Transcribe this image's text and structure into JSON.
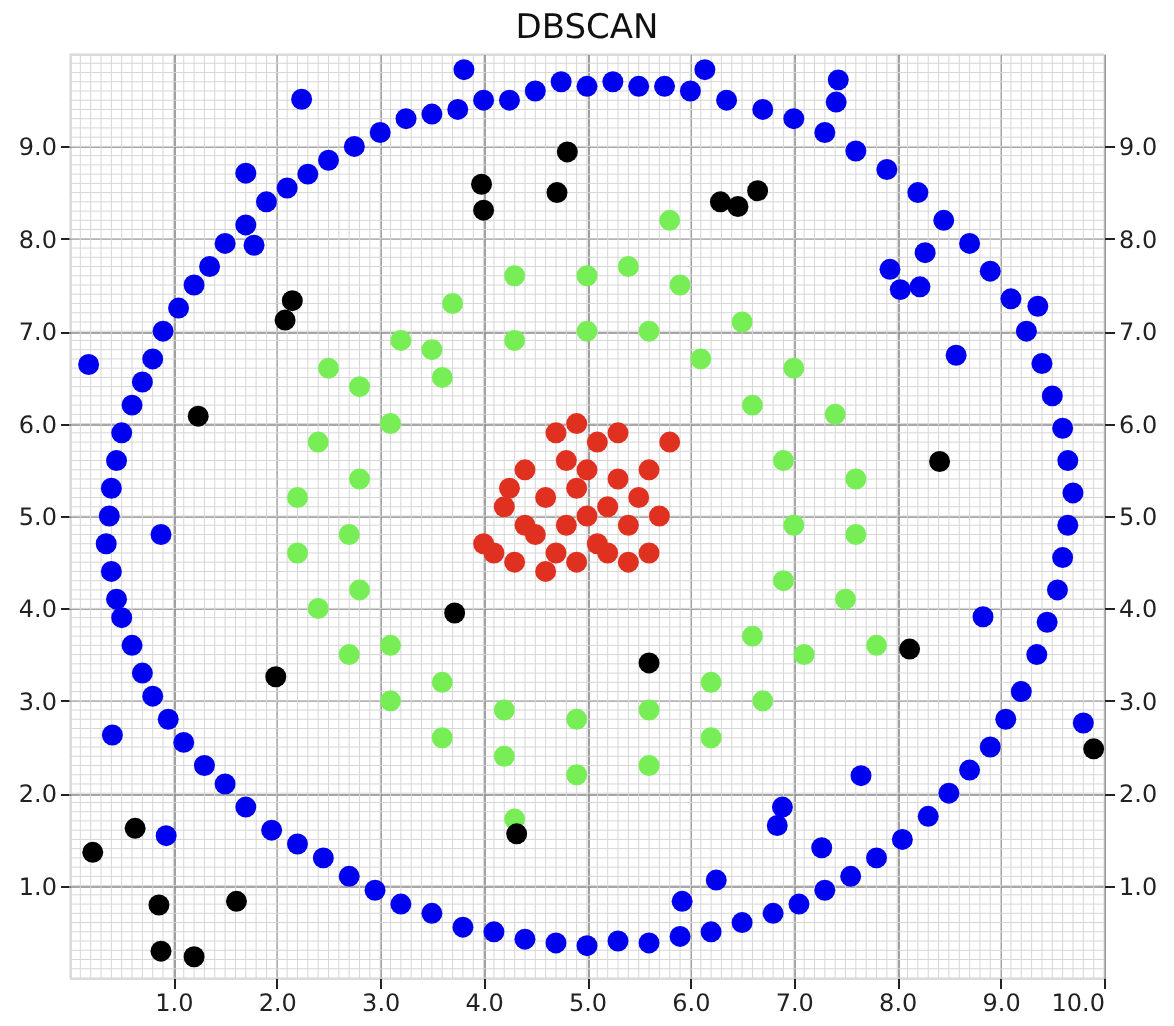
{
  "chart_data": {
    "type": "scatter",
    "title": "DBSCAN",
    "xlim": [
      0,
      10
    ],
    "ylim": [
      0,
      10
    ],
    "y2lim": [
      0,
      10
    ],
    "xticks": [
      {
        "value": 1,
        "label": "1.0"
      },
      {
        "value": 2,
        "label": "2.0"
      },
      {
        "value": 3,
        "label": "3.0"
      },
      {
        "value": 4,
        "label": "4.0"
      },
      {
        "value": 5,
        "label": "5.0"
      },
      {
        "value": 6,
        "label": "6.0"
      },
      {
        "value": 7,
        "label": "7.0"
      },
      {
        "value": 8,
        "label": "8.0"
      },
      {
        "value": 9,
        "label": "9.0"
      },
      {
        "value": 10,
        "label": "10.0"
      }
    ],
    "yticks": [
      {
        "value": 1,
        "label": "1.0"
      },
      {
        "value": 2,
        "label": "2.0"
      },
      {
        "value": 3,
        "label": "3.0"
      },
      {
        "value": 4,
        "label": "4.0"
      },
      {
        "value": 5,
        "label": "5.0"
      },
      {
        "value": 6,
        "label": "6.0"
      },
      {
        "value": 7,
        "label": "7.0"
      },
      {
        "value": 8,
        "label": "8.0"
      },
      {
        "value": 9,
        "label": "9.0"
      }
    ],
    "y2ticks": [
      {
        "value": 1,
        "label": "1.0"
      },
      {
        "value": 2,
        "label": "2.0"
      },
      {
        "value": 3,
        "label": "3.0"
      },
      {
        "value": 4,
        "label": "4.0"
      },
      {
        "value": 5,
        "label": "5.0"
      },
      {
        "value": 6,
        "label": "6.0"
      },
      {
        "value": 7,
        "label": "7.0"
      },
      {
        "value": 8,
        "label": "8.0"
      },
      {
        "value": 9,
        "label": "9.0"
      }
    ],
    "grid": true,
    "marker": "circle",
    "series": [
      {
        "color": "#0000f0",
        "x": [
          5.0,
          4.5,
          4.0,
          3.5,
          3.0,
          2.5,
          2.1,
          1.7,
          1.35,
          1.05,
          0.8,
          0.6,
          0.45,
          0.38,
          0.4,
          0.5,
          0.7,
          0.95,
          1.3,
          1.7,
          2.2,
          2.7,
          3.2,
          3.8,
          4.4,
          5.0,
          5.6,
          6.2,
          6.8,
          7.3,
          7.8,
          8.3,
          8.7,
          9.05,
          9.35,
          9.55,
          9.65,
          9.65,
          9.5,
          9.25,
          8.9,
          8.45,
          7.9,
          7.3,
          6.7,
          6.0,
          5.5,
          4.75,
          4.25,
          3.75,
          3.25,
          2.75,
          2.3,
          1.9,
          1.5,
          1.2,
          0.9,
          0.7,
          0.5,
          0.4,
          0.35,
          0.45,
          0.6,
          0.8,
          1.1,
          1.5,
          1.95,
          2.45,
          2.95,
          3.5,
          4.1,
          4.7,
          5.3,
          5.9,
          6.5,
          7.05,
          7.55,
          8.05,
          8.5,
          8.9,
          9.2,
          9.45,
          9.6,
          9.7,
          9.6,
          9.4,
          9.1,
          8.7,
          8.2,
          7.6,
          7.0,
          6.35,
          5.75,
          5.25,
          3.81,
          2.24,
          1.7,
          1.78,
          0.18,
          0.88,
          0.41,
          0.93,
          6.14,
          7.43,
          7.41,
          7.93,
          8.03,
          8.22,
          8.27,
          9.36,
          8.57,
          8.83,
          9.8,
          7.65,
          6.89,
          6.84,
          7.27,
          6.25,
          5.92
        ],
        "values": [
          9.65,
          9.6,
          9.5,
          9.35,
          9.15,
          8.85,
          8.55,
          8.15,
          7.7,
          7.25,
          6.7,
          6.2,
          5.6,
          5.0,
          4.4,
          3.9,
          3.3,
          2.8,
          2.3,
          1.85,
          1.45,
          1.1,
          0.8,
          0.55,
          0.42,
          0.35,
          0.38,
          0.5,
          0.7,
          0.95,
          1.3,
          1.75,
          2.25,
          2.8,
          3.5,
          4.2,
          4.9,
          5.6,
          6.3,
          7.0,
          7.65,
          8.2,
          8.75,
          9.15,
          9.4,
          9.6,
          9.65,
          9.7,
          9.5,
          9.4,
          9.3,
          9.0,
          8.7,
          8.4,
          7.95,
          7.5,
          7.0,
          6.45,
          5.9,
          5.3,
          4.7,
          4.1,
          3.6,
          3.05,
          2.55,
          2.1,
          1.6,
          1.3,
          0.95,
          0.7,
          0.5,
          0.38,
          0.4,
          0.45,
          0.6,
          0.8,
          1.1,
          1.5,
          2.0,
          2.5,
          3.1,
          3.85,
          4.55,
          5.25,
          5.95,
          6.65,
          7.35,
          7.95,
          8.5,
          8.95,
          9.3,
          9.5,
          9.65,
          9.7,
          9.83,
          9.51,
          8.71,
          7.93,
          6.64,
          4.8,
          2.63,
          1.54,
          9.83,
          9.72,
          9.48,
          7.67,
          7.45,
          7.48,
          7.85,
          7.27,
          6.74,
          3.91,
          2.76,
          2.19,
          1.85,
          1.65,
          1.41,
          1.06,
          0.83
        ]
      },
      {
        "color": "#77ee55",
        "x": [
          5.0,
          4.3,
          3.7,
          3.2,
          2.8,
          2.4,
          2.2,
          2.2,
          2.4,
          2.7,
          3.1,
          3.6,
          4.2,
          4.9,
          5.6,
          6.2,
          6.7,
          7.1,
          7.5,
          7.6,
          7.6,
          7.4,
          7.0,
          6.5,
          5.9,
          5.4,
          5.0,
          4.3,
          3.6,
          3.1,
          2.8,
          2.7,
          2.8,
          3.1,
          3.6,
          4.2,
          4.9,
          5.6,
          6.2,
          6.6,
          6.9,
          7.0,
          6.9,
          6.6,
          6.1,
          5.6,
          5.8,
          4.3,
          3.5,
          2.5,
          7.8
        ],
        "values": [
          7.6,
          7.6,
          7.3,
          6.9,
          6.4,
          5.8,
          5.2,
          4.6,
          4.0,
          3.5,
          3.0,
          2.6,
          2.4,
          2.2,
          2.3,
          2.6,
          3.0,
          3.5,
          4.1,
          4.8,
          5.4,
          6.1,
          6.6,
          7.1,
          7.5,
          7.7,
          7.0,
          6.9,
          6.5,
          6.0,
          5.4,
          4.8,
          4.2,
          3.6,
          3.2,
          2.9,
          2.8,
          2.9,
          3.2,
          3.7,
          4.3,
          4.9,
          5.6,
          6.2,
          6.7,
          7.0,
          8.2,
          1.72,
          6.8,
          6.6,
          3.6
        ]
      },
      {
        "color": "#e03020",
        "x": [
          5.0,
          4.8,
          5.2,
          4.9,
          5.1,
          4.6,
          5.4,
          4.7,
          5.3,
          4.5,
          5.5,
          4.9,
          5.2,
          4.8,
          5.1,
          4.9,
          4.4,
          4.2,
          4.1,
          4.3,
          5.6,
          5.7,
          5.8,
          5.3,
          4.4,
          5.6,
          4.6,
          5.0,
          4.0,
          5.4,
          4.7,
          4.25
        ],
        "values": [
          5.0,
          4.9,
          5.1,
          5.3,
          4.7,
          5.2,
          4.9,
          4.6,
          5.4,
          4.8,
          5.2,
          4.5,
          4.6,
          5.6,
          5.8,
          6.0,
          5.5,
          5.1,
          4.6,
          4.5,
          4.6,
          5.0,
          5.8,
          5.9,
          4.9,
          5.5,
          4.4,
          5.5,
          4.7,
          4.5,
          5.9,
          5.3
        ]
      },
      {
        "color": "#000000",
        "x": [
          4.81,
          3.98,
          4.0,
          4.71,
          2.15,
          2.08,
          1.24,
          6.29,
          6.46,
          6.65,
          8.41,
          3.72,
          1.99,
          0.22,
          0.63,
          0.86,
          1.61,
          0.88,
          1.2,
          4.32,
          5.6,
          8.12,
          9.9
        ],
        "values": [
          8.94,
          8.59,
          8.31,
          8.5,
          7.33,
          7.12,
          6.08,
          8.4,
          8.35,
          8.52,
          5.59,
          3.95,
          3.26,
          1.36,
          1.62,
          0.79,
          0.83,
          0.29,
          0.23,
          1.56,
          3.41,
          3.56,
          2.48
        ]
      }
    ]
  }
}
